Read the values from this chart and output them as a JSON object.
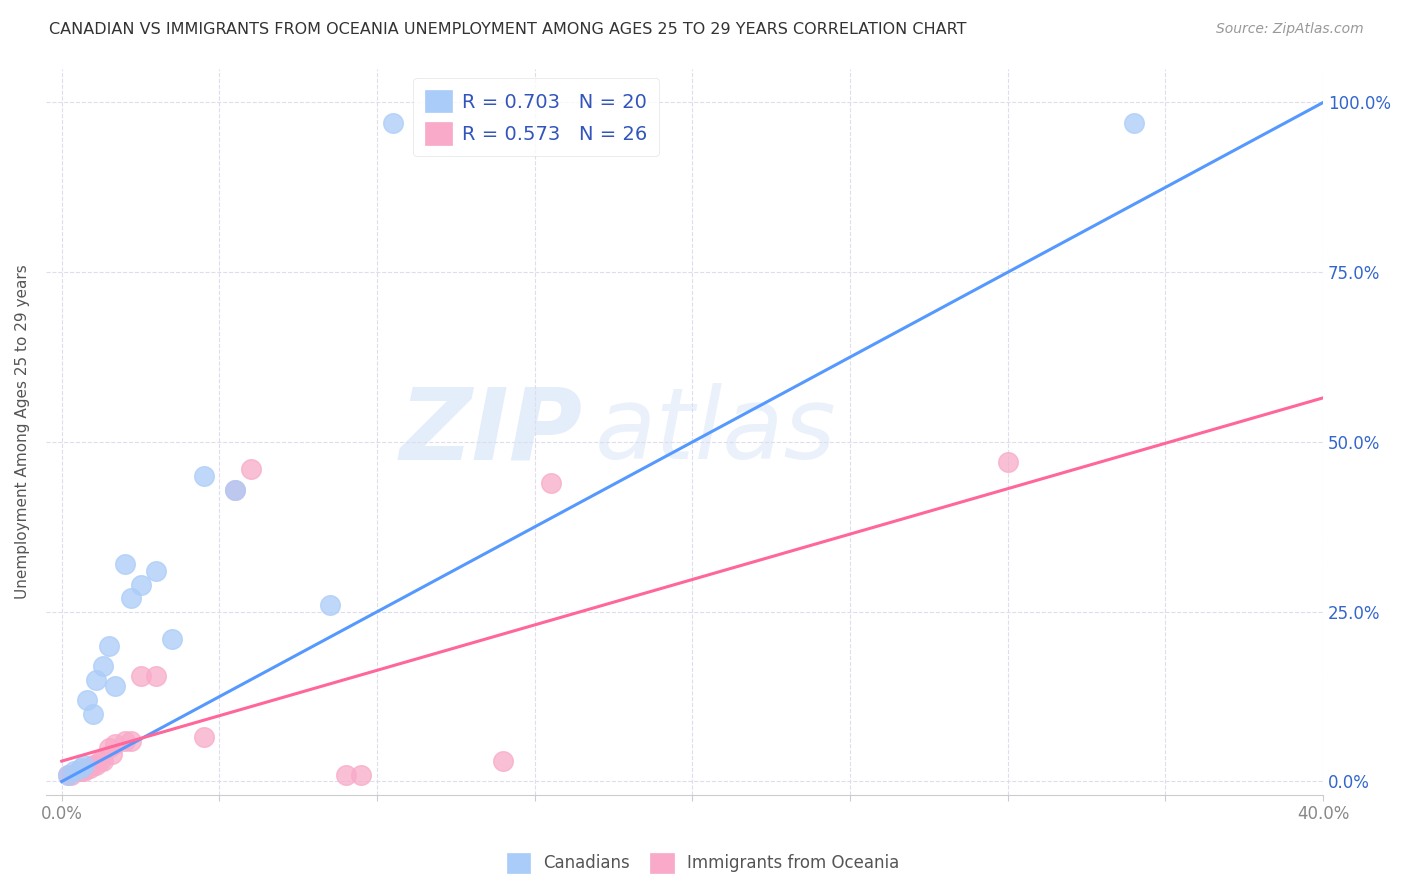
{
  "title": "CANADIAN VS IMMIGRANTS FROM OCEANIA UNEMPLOYMENT AMONG AGES 25 TO 29 YEARS CORRELATION CHART",
  "source": "Source: ZipAtlas.com",
  "xlabel_ticks": [
    "0.0%",
    "",
    "",
    "",
    "",
    "",
    "",
    "",
    "40.0%"
  ],
  "xlabel_vals": [
    0.0,
    0.05,
    0.1,
    0.15,
    0.2,
    0.25,
    0.3,
    0.35,
    0.4
  ],
  "ylabel_ticks_left": [
    "",
    "",
    "",
    "",
    ""
  ],
  "ylabel_ticks_right": [
    "100.0%",
    "75.0%",
    "50.0%",
    "25.0%",
    "0.0%"
  ],
  "ylabel_vals": [
    1.0,
    0.75,
    0.5,
    0.25,
    0.0
  ],
  "xlim": [
    -0.005,
    0.4
  ],
  "ylim": [
    -0.02,
    1.05
  ],
  "ylabel": "Unemployment Among Ages 25 to 29 years",
  "watermark_zip": "ZIP",
  "watermark_atlas": "atlas",
  "canadians_color": "#aaccf8",
  "immigrants_color": "#f8aac8",
  "canadians_line_color": "#5599ff",
  "immigrants_line_color": "#ff6699",
  "legend_box_color_canadians": "#aaccf8",
  "legend_box_color_immigrants": "#f8aac8",
  "legend_text_color": "#3355bb",
  "canadians_R": 0.703,
  "canadians_N": 20,
  "immigrants_R": 0.573,
  "immigrants_N": 26,
  "canadians_x": [
    0.002,
    0.004,
    0.006,
    0.007,
    0.008,
    0.01,
    0.011,
    0.013,
    0.015,
    0.017,
    0.02,
    0.022,
    0.025,
    0.03,
    0.035,
    0.045,
    0.055,
    0.085,
    0.105,
    0.34
  ],
  "canadians_y": [
    0.01,
    0.015,
    0.02,
    0.025,
    0.12,
    0.1,
    0.15,
    0.17,
    0.2,
    0.14,
    0.32,
    0.27,
    0.29,
    0.31,
    0.21,
    0.45,
    0.43,
    0.26,
    0.97,
    0.97
  ],
  "immigrants_x": [
    0.002,
    0.003,
    0.005,
    0.006,
    0.007,
    0.008,
    0.009,
    0.01,
    0.011,
    0.012,
    0.013,
    0.015,
    0.016,
    0.017,
    0.02,
    0.022,
    0.025,
    0.03,
    0.045,
    0.055,
    0.06,
    0.09,
    0.095,
    0.14,
    0.155,
    0.3
  ],
  "immigrants_y": [
    0.01,
    0.01,
    0.015,
    0.015,
    0.015,
    0.02,
    0.02,
    0.025,
    0.025,
    0.03,
    0.03,
    0.05,
    0.04,
    0.055,
    0.06,
    0.06,
    0.155,
    0.155,
    0.065,
    0.43,
    0.46,
    0.01,
    0.01,
    0.03,
    0.44,
    0.47
  ],
  "canadians_line_x": [
    0.0,
    0.4
  ],
  "canadians_line_y": [
    0.0,
    1.0
  ],
  "immigrants_line_x": [
    0.0,
    0.4
  ],
  "immigrants_line_y": [
    0.03,
    0.565
  ],
  "background_color": "#ffffff",
  "grid_color": "#ddddee",
  "tick_color": "#888888"
}
